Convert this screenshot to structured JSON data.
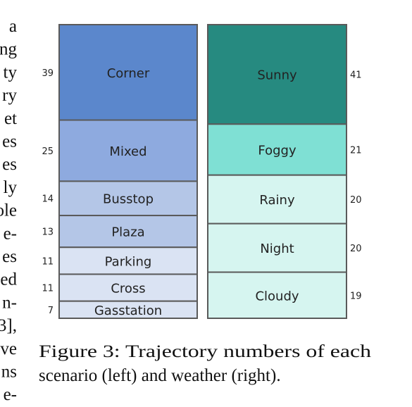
{
  "side_text": [
    "a",
    "ng",
    "ty",
    "ry",
    "et",
    "es",
    "es",
    "ly",
    "ole",
    "e-",
    "es",
    "ed",
    "n-",
    "3],",
    "ve",
    "ns",
    "e-"
  ],
  "chart_data": [
    {
      "type": "stacked-bar",
      "categories": [
        "Corner",
        "Mixed",
        "Busstop",
        "Plaza",
        "Parking",
        "Cross",
        "Gasstation"
      ],
      "values": [
        39,
        25,
        14,
        13,
        11,
        11,
        7
      ],
      "colors": [
        "#5b87cc",
        "#8eaadf",
        "#b4c6e7",
        "#b4c6e7",
        "#dae3f3",
        "#dae3f3",
        "#dae3f3"
      ],
      "label_side": "left"
    },
    {
      "type": "stacked-bar",
      "categories": [
        "Sunny",
        "Foggy",
        "Rainy",
        "Night",
        "Cloudy"
      ],
      "values": [
        41,
        21,
        20,
        20,
        19
      ],
      "colors": [
        "#268a80",
        "#7fe0d4",
        "#d6f5f0",
        "#d6f5f0",
        "#d6f5f0"
      ],
      "label_side": "right"
    }
  ],
  "caption_lines": [
    "Figure 3:  Trajectory numbers of each",
    "scenario (left) and weather (right)."
  ]
}
